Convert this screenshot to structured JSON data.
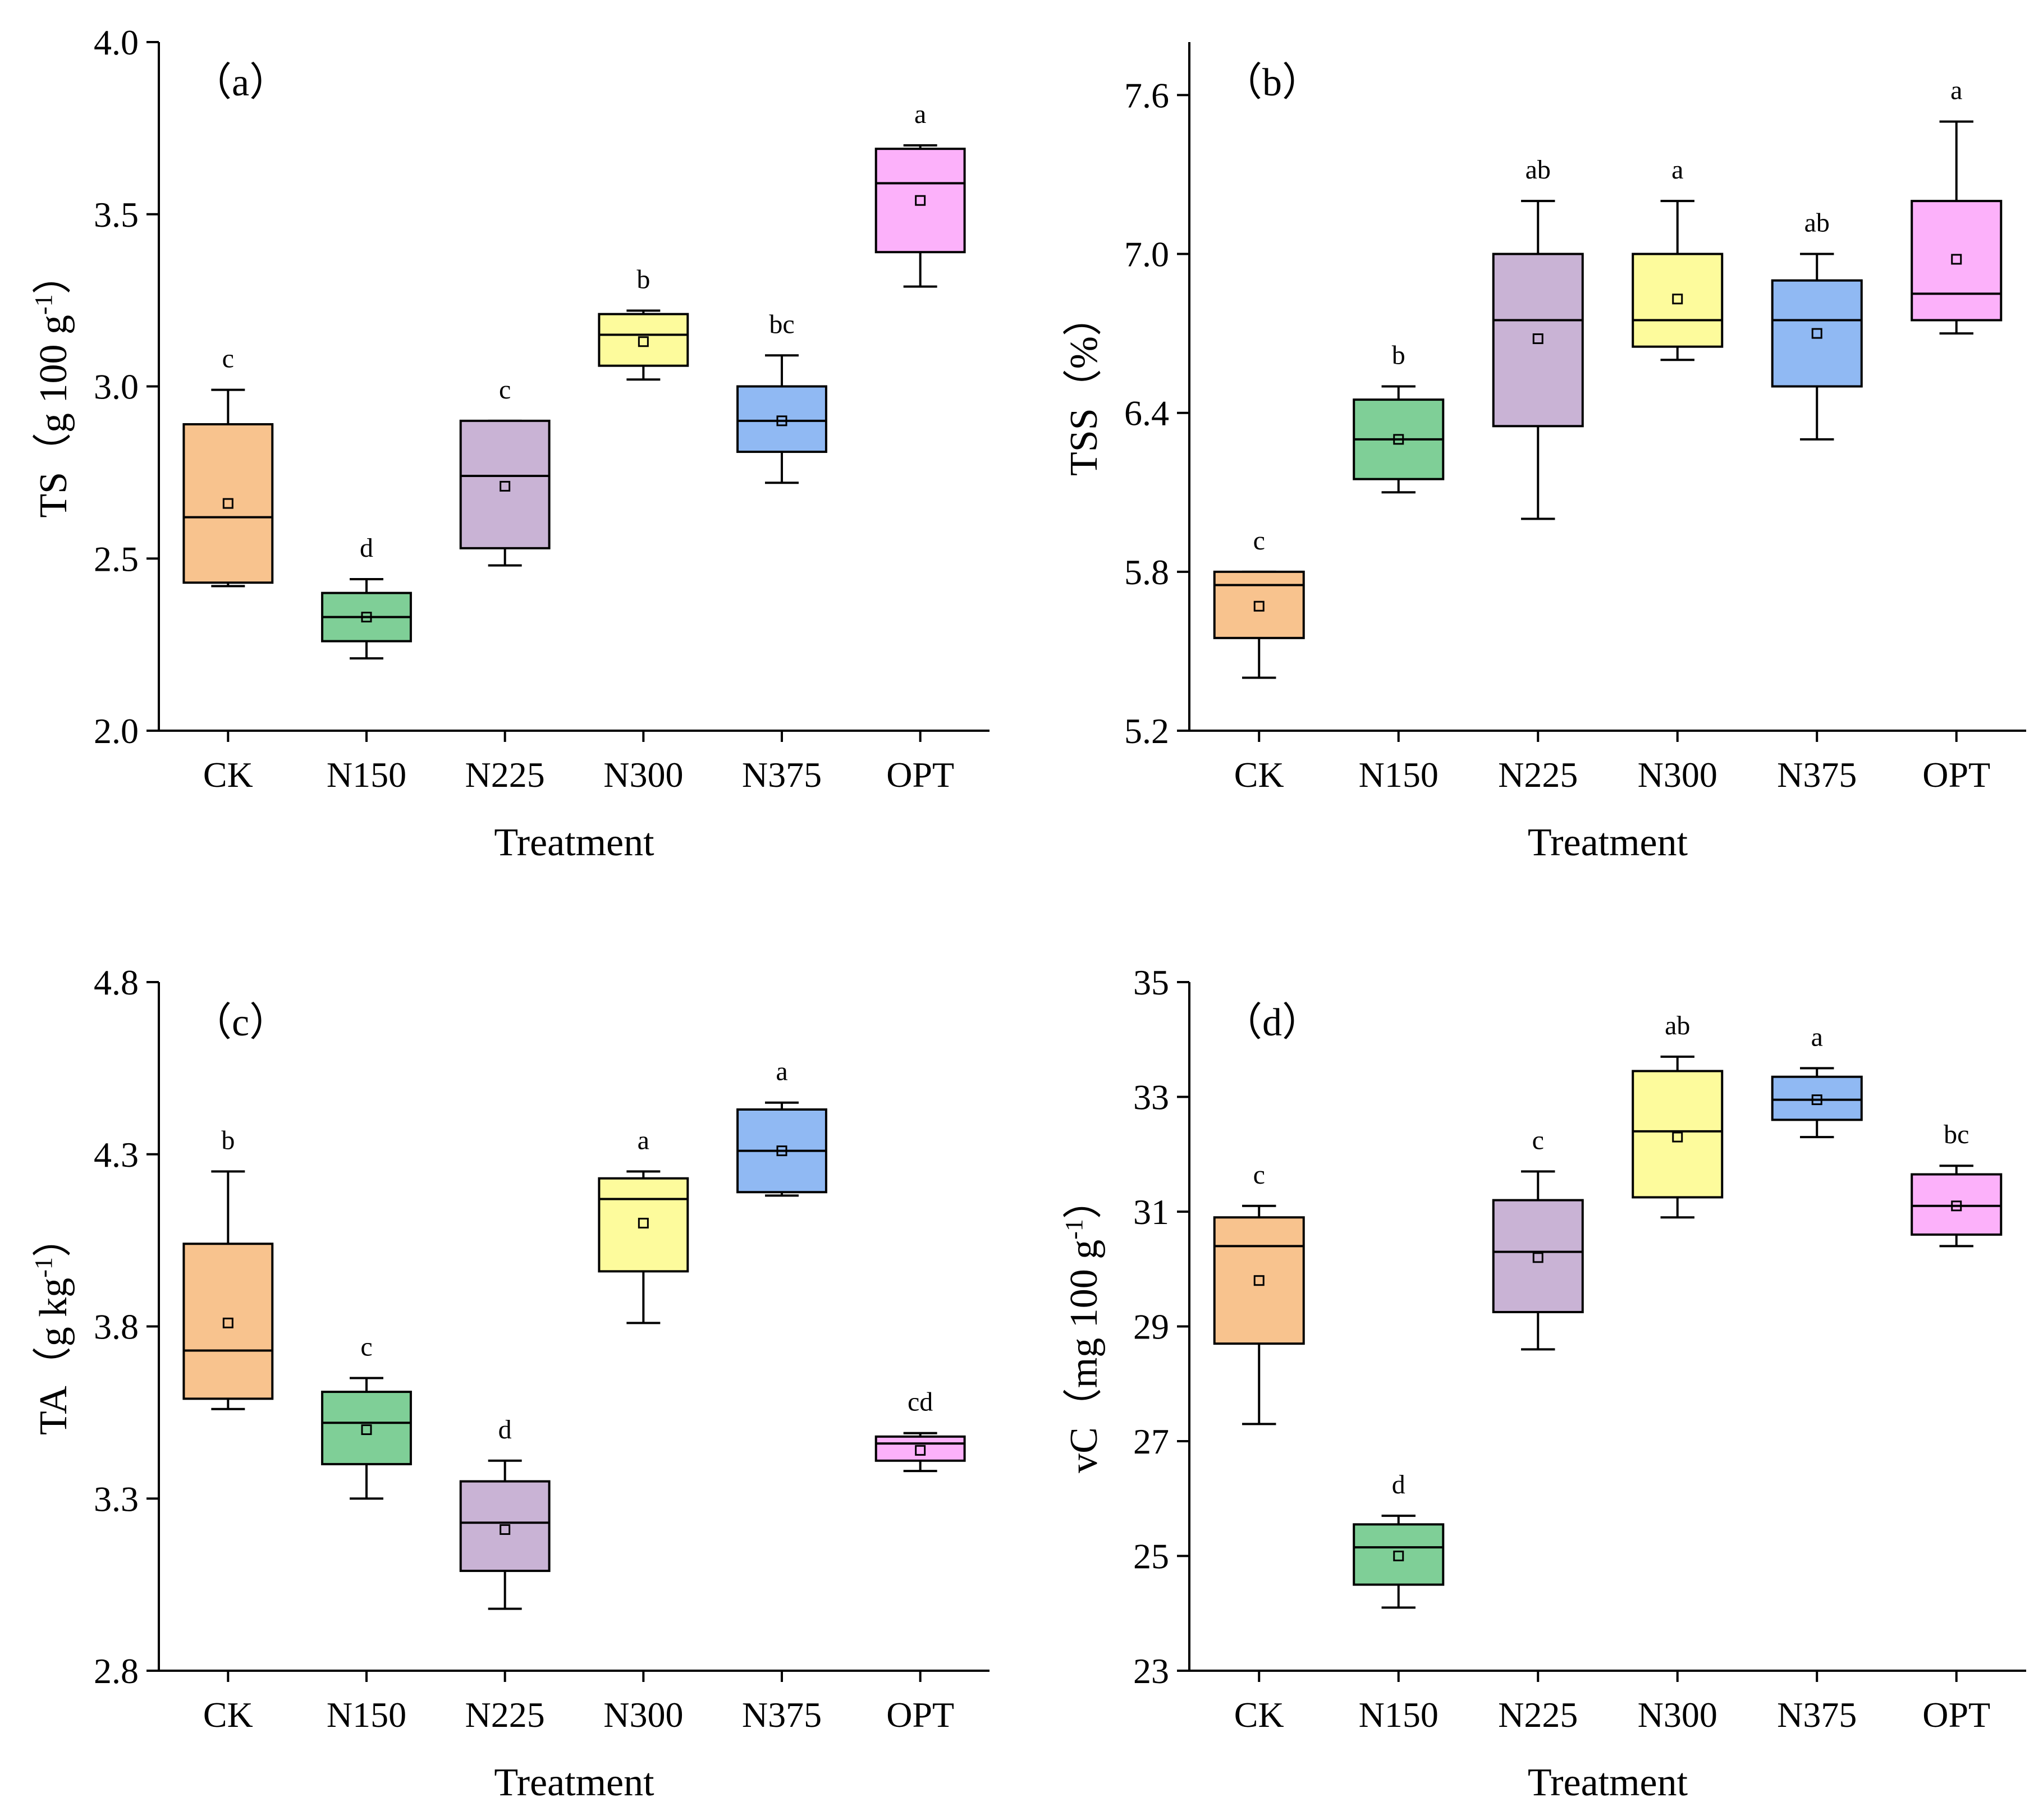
{
  "figure": {
    "treatment_colors": {
      "CK": "#F8C38E",
      "N150": "#7FCF97",
      "N225": "#C9B3D5",
      "N300": "#FDFB9C",
      "N375": "#90B9F3",
      "OPT": "#FCB1FA"
    }
  },
  "chart_data": [
    {
      "type": "box",
      "panel_label": "（a）",
      "xlabel": "Treatment",
      "ylabel": {
        "prefix": "TS（g 100 g",
        "sup": "-1",
        "suffix": "）"
      },
      "ylim": [
        2.0,
        4.0
      ],
      "yticks": [
        2.0,
        2.5,
        3.0,
        3.5,
        4.0
      ],
      "ytick_labels": [
        "2.0",
        "2.5",
        "3.0",
        "3.5",
        "4.0"
      ],
      "categories": [
        "CK",
        "N150",
        "N225",
        "N300",
        "N375",
        "OPT"
      ],
      "boxes": [
        {
          "min": 2.42,
          "q1": 2.43,
          "median": 2.62,
          "q3": 2.89,
          "max": 2.99,
          "mean": 2.66,
          "letter": "c"
        },
        {
          "min": 2.21,
          "q1": 2.26,
          "median": 2.33,
          "q3": 2.4,
          "max": 2.44,
          "mean": 2.33,
          "letter": "d"
        },
        {
          "min": 2.48,
          "q1": 2.53,
          "median": 2.74,
          "q3": 2.9,
          "max": 2.9,
          "mean": 2.71,
          "letter": "c"
        },
        {
          "min": 3.02,
          "q1": 3.06,
          "median": 3.15,
          "q3": 3.21,
          "max": 3.22,
          "mean": 3.13,
          "letter": "b"
        },
        {
          "min": 2.72,
          "q1": 2.81,
          "median": 2.9,
          "q3": 3.0,
          "max": 3.09,
          "mean": 2.9,
          "letter": "bc"
        },
        {
          "min": 3.29,
          "q1": 3.39,
          "median": 3.59,
          "q3": 3.69,
          "max": 3.7,
          "mean": 3.54,
          "letter": "a"
        }
      ]
    },
    {
      "type": "box",
      "panel_label": "（b）",
      "xlabel": "Treatment",
      "ylabel": {
        "prefix": "TSS（%）",
        "sup": "",
        "suffix": ""
      },
      "ylim": [
        5.2,
        7.8
      ],
      "yticks": [
        5.2,
        5.8,
        6.4,
        7.0,
        7.6
      ],
      "ytick_labels": [
        "5.2",
        "5.8",
        "6.4",
        "7.0",
        "7.6"
      ],
      "categories": [
        "CK",
        "N150",
        "N225",
        "N300",
        "N375",
        "OPT"
      ],
      "boxes": [
        {
          "min": 5.4,
          "q1": 5.55,
          "median": 5.75,
          "q3": 5.8,
          "max": 5.8,
          "mean": 5.67,
          "letter": "c"
        },
        {
          "min": 6.1,
          "q1": 6.15,
          "median": 6.3,
          "q3": 6.45,
          "max": 6.5,
          "mean": 6.3,
          "letter": "b"
        },
        {
          "min": 6.0,
          "q1": 6.35,
          "median": 6.75,
          "q3": 7.0,
          "max": 7.2,
          "mean": 6.68,
          "letter": "ab"
        },
        {
          "min": 6.6,
          "q1": 6.65,
          "median": 6.75,
          "q3": 7.0,
          "max": 7.2,
          "mean": 6.83,
          "letter": "a"
        },
        {
          "min": 6.3,
          "q1": 6.5,
          "median": 6.75,
          "q3": 6.9,
          "max": 7.0,
          "mean": 6.7,
          "letter": "ab"
        },
        {
          "min": 6.7,
          "q1": 6.75,
          "median": 6.85,
          "q3": 7.2,
          "max": 7.5,
          "mean": 6.98,
          "letter": "a"
        }
      ]
    },
    {
      "type": "box",
      "panel_label": "（c）",
      "xlabel": "Treatment",
      "ylabel": {
        "prefix": "TA（g kg",
        "sup": "-1",
        "suffix": "）"
      },
      "ylim": [
        2.8,
        4.8
      ],
      "yticks": [
        2.8,
        3.3,
        3.8,
        4.3,
        4.8
      ],
      "ytick_labels": [
        "2.8",
        "3.3",
        "3.8",
        "4.3",
        "4.8"
      ],
      "categories": [
        "CK",
        "N150",
        "N225",
        "N300",
        "N375",
        "OPT"
      ],
      "boxes": [
        {
          "min": 3.56,
          "q1": 3.59,
          "median": 3.73,
          "q3": 4.04,
          "max": 4.25,
          "mean": 3.81,
          "letter": "b"
        },
        {
          "min": 3.3,
          "q1": 3.4,
          "median": 3.52,
          "q3": 3.61,
          "max": 3.65,
          "mean": 3.5,
          "letter": "c"
        },
        {
          "min": 2.98,
          "q1": 3.09,
          "median": 3.23,
          "q3": 3.35,
          "max": 3.41,
          "mean": 3.21,
          "letter": "d"
        },
        {
          "min": 3.81,
          "q1": 3.96,
          "median": 4.17,
          "q3": 4.23,
          "max": 4.25,
          "mean": 4.1,
          "letter": "a"
        },
        {
          "min": 4.18,
          "q1": 4.19,
          "median": 4.31,
          "q3": 4.43,
          "max": 4.45,
          "mean": 4.31,
          "letter": "a"
        },
        {
          "min": 3.38,
          "q1": 3.41,
          "median": 3.46,
          "q3": 3.48,
          "max": 3.49,
          "mean": 3.44,
          "letter": "cd"
        }
      ]
    },
    {
      "type": "box",
      "panel_label": "（d）",
      "xlabel": "Treatment",
      "ylabel": {
        "prefix": "vC（mg 100 g",
        "sup": "-1",
        "suffix": "）"
      },
      "ylim": [
        23,
        35
      ],
      "yticks": [
        23,
        25,
        27,
        29,
        31,
        33,
        35
      ],
      "ytick_labels": [
        "23",
        "25",
        "27",
        "29",
        "31",
        "33",
        "35"
      ],
      "categories": [
        "CK",
        "N150",
        "N225",
        "N300",
        "N375",
        "OPT"
      ],
      "boxes": [
        {
          "min": 27.3,
          "q1": 28.7,
          "median": 30.4,
          "q3": 30.9,
          "max": 31.1,
          "mean": 29.8,
          "letter": "c"
        },
        {
          "min": 24.1,
          "q1": 24.5,
          "median": 25.15,
          "q3": 25.55,
          "max": 25.7,
          "mean": 25.0,
          "letter": "d"
        },
        {
          "min": 28.6,
          "q1": 29.25,
          "median": 30.3,
          "q3": 31.2,
          "max": 31.7,
          "mean": 30.2,
          "letter": "c"
        },
        {
          "min": 30.9,
          "q1": 31.25,
          "median": 32.4,
          "q3": 33.45,
          "max": 33.7,
          "mean": 32.3,
          "letter": "ab"
        },
        {
          "min": 32.3,
          "q1": 32.6,
          "median": 32.95,
          "q3": 33.35,
          "max": 33.5,
          "mean": 32.95,
          "letter": "a"
        },
        {
          "min": 30.4,
          "q1": 30.6,
          "median": 31.1,
          "q3": 31.65,
          "max": 31.8,
          "mean": 31.1,
          "letter": "bc"
        }
      ]
    }
  ]
}
